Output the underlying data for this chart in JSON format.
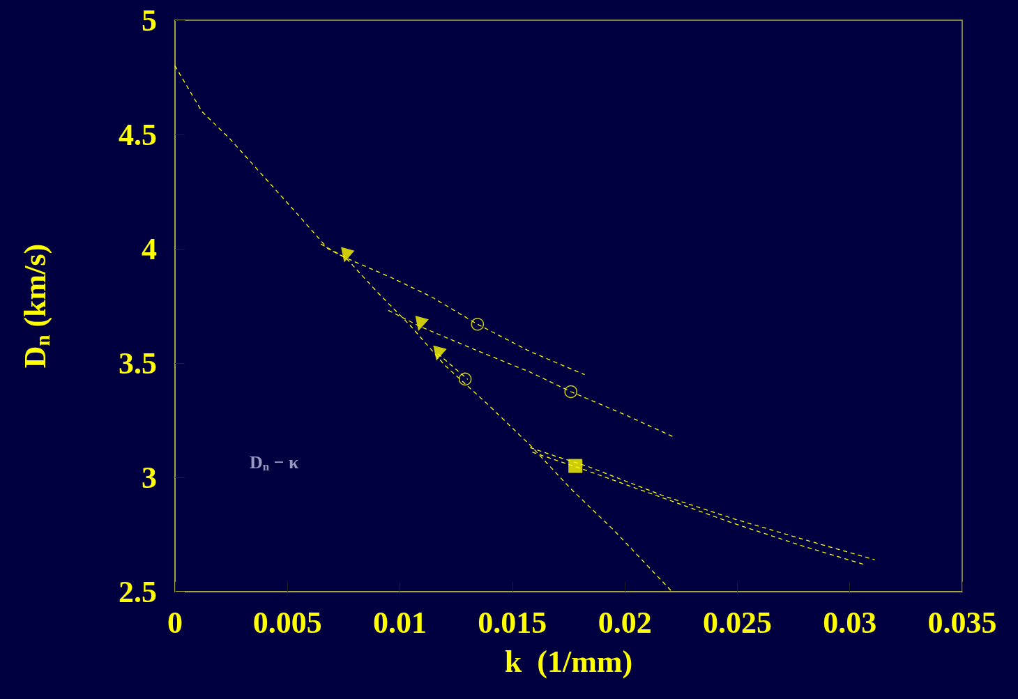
{
  "chart_data": {
    "type": "line",
    "xlabel": "k  (1/mm)",
    "ylabel": "D$_{n}$ (km/s)",
    "annotations": [
      "D$_{n}$ − κ"
    ],
    "xlim": [
      0,
      0.035
    ],
    "xticks": [
      0,
      0.005,
      0.01,
      0.015,
      0.02,
      0.025,
      0.03,
      0.035
    ],
    "ylim": [
      2.5,
      5
    ],
    "yticks": [
      2.5,
      3,
      3.5,
      4,
      4.5,
      5
    ],
    "series": [
      {
        "color": "#ffff00",
        "line_style": "dashed",
        "marker": "none",
        "x": [
          0,
          0.0012,
          0.00245,
          0.004,
          0.00555,
          0.0068,
          0.0076,
          0.009,
          0.0105,
          0.012,
          0.0139,
          0.0158,
          0.0176,
          0.0195,
          0.0221
        ],
        "values": [
          4.8,
          4.6,
          4.48,
          4.31,
          4.14,
          4.0,
          3.96,
          3.81,
          3.66,
          3.49,
          3.32,
          3.14,
          2.95,
          2.77,
          2.5
        ]
      },
      {
        "color": "#ffff00",
        "line_style": "dashed",
        "marker": "none",
        "x": [
          0.0065,
          0.0076,
          0.0096,
          0.0114,
          0.01345,
          0.0158,
          0.0182
        ],
        "values": [
          4.02,
          3.96,
          3.875,
          3.79,
          3.67,
          3.55,
          3.45
        ]
      },
      {
        "color": "#ffff00",
        "line_style": "dashed",
        "marker": "none",
        "x": [
          0.0095,
          0.0109,
          0.0133,
          0.0158,
          0.0176,
          0.0201,
          0.0221
        ],
        "values": [
          3.73,
          3.66,
          3.56,
          3.46,
          3.375,
          3.27,
          3.18
        ]
      },
      {
        "color": "#ffff00",
        "line_style": "dashed",
        "marker": "none",
        "x": [
          0.0117,
          0.013
        ],
        "values": [
          3.54,
          3.43
        ]
      },
      {
        "color": "#ffff00",
        "line_style": "dashed",
        "marker": "none",
        "x": [
          0.0158,
          0.017,
          0.0183,
          0.0217,
          0.0248,
          0.0279,
          0.0311
        ],
        "values": [
          3.13,
          3.09,
          3.05,
          2.92,
          2.82,
          2.73,
          2.64
        ]
      },
      {
        "color": "#ffff00",
        "line_style": "dashed",
        "marker": "none",
        "x": [
          0.0159,
          0.0183,
          0.0217,
          0.0248,
          0.0279,
          0.0306
        ],
        "values": [
          3.11,
          3.03,
          2.91,
          2.8,
          2.7,
          2.62
        ]
      },
      {
        "type": "scatter",
        "color": "#ffff00",
        "marker": "triangle",
        "x": [
          0.0076,
          0.0109,
          0.0117
        ],
        "values": [
          3.97,
          3.67,
          3.54
        ]
      },
      {
        "type": "scatter",
        "color": "#ffff00",
        "marker": "circle",
        "x": [
          0.01345,
          0.0176,
          0.0129
        ],
        "values": [
          3.67,
          3.375,
          3.43
        ]
      },
      {
        "type": "scatter",
        "color": "#ffff00",
        "marker": "square",
        "x": [
          0.0178
        ],
        "values": [
          3.05
        ]
      }
    ]
  }
}
